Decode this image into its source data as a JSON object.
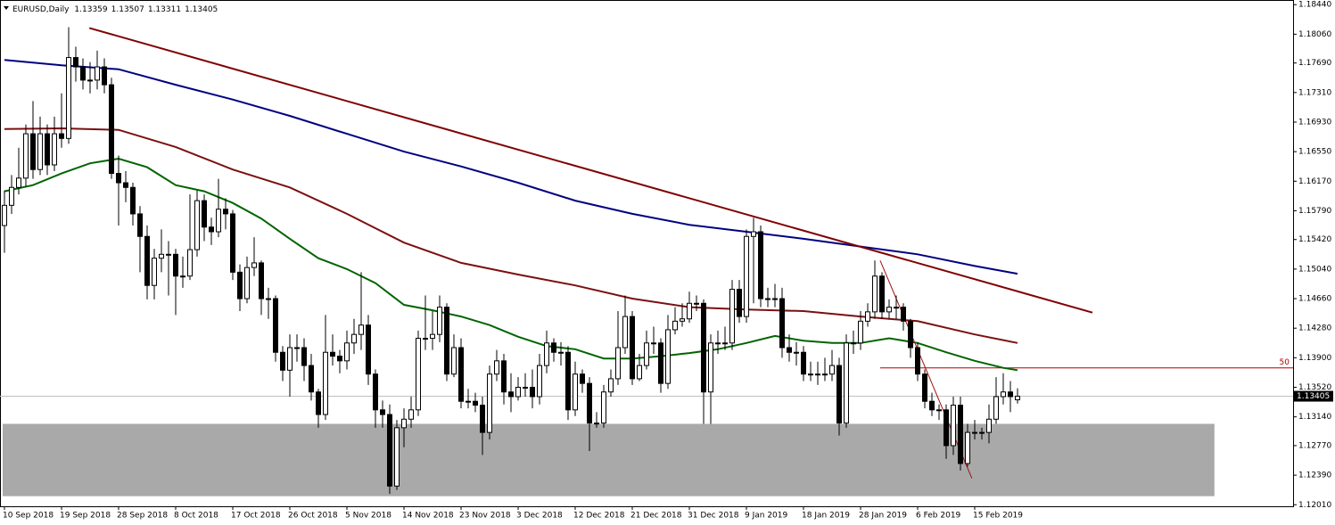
{
  "chart_data": {
    "type": "candlestick",
    "symbol": "EURUSD,Daily",
    "categories": [
      "10 Sep 2018",
      null,
      null,
      null,
      null,
      null,
      null,
      null,
      "19 Sep 2018",
      null,
      null,
      null,
      null,
      null,
      null,
      null,
      "28 Sep 2018",
      null,
      null,
      null,
      null,
      null,
      null,
      null,
      "8 Oct 2018",
      null,
      null,
      null,
      null,
      null,
      null,
      null,
      "17 Oct 2018",
      null,
      null,
      null,
      null,
      null,
      null,
      null,
      "26 Oct 2018",
      null,
      null,
      null,
      null,
      null,
      null,
      null,
      "5 Nov 2018",
      null,
      null,
      null,
      null,
      null,
      null,
      null,
      "14 Nov 2018",
      null,
      null,
      null,
      null,
      null,
      null,
      null,
      "23 Nov 2018",
      null,
      null,
      null,
      null,
      null,
      null,
      null,
      "3 Dec 2018",
      null,
      null,
      null,
      null,
      null,
      null,
      null,
      "12 Dec 2018",
      null,
      null,
      null,
      null,
      null,
      null,
      null,
      "21 Dec 2018",
      null,
      null,
      null,
      null,
      null,
      null,
      null,
      "31 Dec 2018",
      null,
      null,
      null,
      null,
      null,
      null,
      null,
      "9 Jan 2019",
      null,
      null,
      null,
      null,
      null,
      null,
      null,
      "18 Jan 2019",
      null,
      null,
      null,
      null,
      null,
      null,
      null,
      "28 Jan 2019",
      null,
      null,
      null,
      null,
      null,
      null,
      null,
      "6 Feb 2019",
      null,
      null,
      null,
      null,
      null,
      null,
      null,
      "15 Feb 2019",
      null,
      null,
      null,
      null,
      null,
      null
    ],
    "candles": {
      "up_color": "#ffffff",
      "down_color": "#000000",
      "open": [
        1.156,
        1.1586,
        1.1609,
        1.1621,
        1.1678,
        1.1632,
        1.1678,
        1.1638,
        1.1678,
        1.1672,
        1.1776,
        1.1764,
        1.1747,
        1.1747,
        1.1764,
        1.1741,
        1.1627,
        1.1615,
        1.1609,
        1.1575,
        1.1546,
        1.1483,
        1.1518,
        1.1523,
        1.1523,
        1.1495,
        1.1495,
        1.1529,
        1.1592,
        1.1558,
        1.1552,
        1.1581,
        1.1575,
        1.15,
        1.1466,
        1.1506,
        1.1512,
        1.1466,
        1.1466,
        1.1397,
        1.1374,
        1.1403,
        1.1403,
        1.138,
        1.1346,
        1.1317,
        1.1397,
        1.1392,
        1.1386,
        1.1409,
        1.142,
        1.1432,
        1.1369,
        1.1323,
        1.1317,
        1.1225,
        1.13,
        1.1311,
        1.1323,
        1.1415,
        1.1415,
        1.142,
        1.1455,
        1.1369,
        1.1403,
        1.1334,
        1.1334,
        1.1329,
        1.1294,
        1.1369,
        1.1386,
        1.1346,
        1.134,
        1.1352,
        1.1352,
        1.134,
        1.138,
        1.1409,
        1.1397,
        1.1397,
        1.1323,
        1.1369,
        1.1357,
        1.1306,
        1.1306,
        1.1346,
        1.1363,
        1.1403,
        1.1443,
        1.1363,
        1.138,
        1.1409,
        1.1409,
        1.1357,
        1.1426,
        1.1437,
        1.144,
        1.146,
        1.146,
        1.1346,
        1.1409,
        1.1409,
        1.1409,
        1.1478,
        1.1443,
        1.1546,
        1.1552,
        1.1466,
        1.1466,
        1.1466,
        1.1403,
        1.1397,
        1.1397,
        1.1369,
        1.1369,
        1.1369,
        1.1369,
        1.138,
        1.1306,
        1.1409,
        1.1409,
        1.1437,
        1.1449,
        1.1495,
        1.1449,
        1.1455,
        1.1455,
        1.1437,
        1.1403,
        1.1369,
        1.1334,
        1.1323,
        1.1323,
        1.1277,
        1.1329,
        1.1254,
        1.1294,
        1.1294,
        1.1294,
        1.1311,
        1.134,
        1.1346,
        1.13359
      ],
      "high": [
        1.1605,
        1.1625,
        1.166,
        1.169,
        1.172,
        1.17,
        1.169,
        1.17,
        1.173,
        1.1815,
        1.179,
        1.1775,
        1.177,
        1.1785,
        1.1775,
        1.175,
        1.165,
        1.163,
        1.1615,
        1.1585,
        1.156,
        1.153,
        1.1555,
        1.154,
        1.153,
        1.152,
        1.16,
        1.1605,
        1.16,
        1.157,
        1.162,
        1.1595,
        1.158,
        1.151,
        1.152,
        1.1545,
        1.1515,
        1.148,
        1.147,
        1.1405,
        1.142,
        1.142,
        1.1415,
        1.1395,
        1.135,
        1.1445,
        1.142,
        1.14,
        1.1425,
        1.144,
        1.15,
        1.1445,
        1.1375,
        1.1335,
        1.133,
        1.131,
        1.1325,
        1.134,
        1.1425,
        1.147,
        1.145,
        1.147,
        1.146,
        1.142,
        1.1415,
        1.135,
        1.1345,
        1.134,
        1.138,
        1.14,
        1.1395,
        1.137,
        1.1365,
        1.137,
        1.1375,
        1.1395,
        1.1425,
        1.1415,
        1.141,
        1.1405,
        1.1385,
        1.1375,
        1.1365,
        1.132,
        1.1355,
        1.1375,
        1.145,
        1.147,
        1.145,
        1.1395,
        1.1425,
        1.143,
        1.1415,
        1.1445,
        1.1455,
        1.146,
        1.1475,
        1.147,
        1.1465,
        1.142,
        1.1425,
        1.143,
        1.149,
        1.149,
        1.1555,
        1.157,
        1.156,
        1.148,
        1.1485,
        1.148,
        1.142,
        1.141,
        1.1405,
        1.1385,
        1.1385,
        1.139,
        1.14,
        1.139,
        1.142,
        1.1425,
        1.145,
        1.146,
        1.1515,
        1.15,
        1.1465,
        1.147,
        1.146,
        1.144,
        1.141,
        1.1375,
        1.1345,
        1.133,
        1.133,
        1.134,
        1.134,
        1.1305,
        1.131,
        1.13,
        1.133,
        1.1365,
        1.137,
        1.136,
        1.13507
      ],
      "low": [
        1.1525,
        1.1575,
        1.16,
        1.161,
        1.162,
        1.1625,
        1.1625,
        1.163,
        1.166,
        1.1665,
        1.1745,
        1.1735,
        1.173,
        1.1735,
        1.173,
        1.162,
        1.156,
        1.159,
        1.156,
        1.15,
        1.1465,
        1.1465,
        1.15,
        1.147,
        1.1445,
        1.148,
        1.149,
        1.152,
        1.154,
        1.1535,
        1.1545,
        1.1555,
        1.149,
        1.145,
        1.146,
        1.1495,
        1.1445,
        1.144,
        1.1385,
        1.136,
        1.134,
        1.1385,
        1.136,
        1.1335,
        1.13,
        1.131,
        1.138,
        1.137,
        1.1375,
        1.1395,
        1.14,
        1.1355,
        1.13,
        1.13,
        1.1215,
        1.122,
        1.1275,
        1.13,
        1.1315,
        1.14,
        1.14,
        1.141,
        1.136,
        1.1365,
        1.1325,
        1.1325,
        1.132,
        1.1265,
        1.1285,
        1.136,
        1.133,
        1.132,
        1.1335,
        1.134,
        1.1325,
        1.133,
        1.137,
        1.1385,
        1.138,
        1.131,
        1.1315,
        1.1345,
        1.127,
        1.13,
        1.13,
        1.134,
        1.1355,
        1.1395,
        1.1355,
        1.136,
        1.1375,
        1.1395,
        1.1345,
        1.135,
        1.142,
        1.143,
        1.1435,
        1.145,
        1.1305,
        1.1305,
        1.1395,
        1.14,
        1.14,
        1.1435,
        1.1435,
        1.146,
        1.1455,
        1.1455,
        1.1455,
        1.139,
        1.1385,
        1.138,
        1.136,
        1.136,
        1.1355,
        1.136,
        1.136,
        1.129,
        1.13,
        1.1395,
        1.14,
        1.143,
        1.144,
        1.144,
        1.144,
        1.144,
        1.1425,
        1.139,
        1.136,
        1.1325,
        1.1315,
        1.131,
        1.126,
        1.1265,
        1.1245,
        1.125,
        1.1285,
        1.1285,
        1.128,
        1.1305,
        1.133,
        1.132,
        1.13311
      ],
      "close": [
        1.1586,
        1.1609,
        1.1621,
        1.1678,
        1.1632,
        1.1678,
        1.1638,
        1.1678,
        1.1672,
        1.1776,
        1.1764,
        1.1747,
        1.1747,
        1.1764,
        1.1741,
        1.1627,
        1.1615,
        1.1609,
        1.1575,
        1.1546,
        1.1483,
        1.1518,
        1.1523,
        1.1523,
        1.1495,
        1.1495,
        1.1529,
        1.1592,
        1.1558,
        1.1552,
        1.1581,
        1.1575,
        1.15,
        1.1466,
        1.1506,
        1.1512,
        1.1466,
        1.1466,
        1.1397,
        1.1374,
        1.1403,
        1.1403,
        1.138,
        1.1346,
        1.1317,
        1.1397,
        1.1392,
        1.1386,
        1.1409,
        1.142,
        1.1432,
        1.1369,
        1.1323,
        1.1317,
        1.1225,
        1.13,
        1.1311,
        1.1323,
        1.1415,
        1.1415,
        1.142,
        1.1455,
        1.1369,
        1.1403,
        1.1334,
        1.1334,
        1.1329,
        1.1294,
        1.1369,
        1.1386,
        1.1346,
        1.134,
        1.1352,
        1.1352,
        1.134,
        1.138,
        1.1409,
        1.1397,
        1.1397,
        1.1323,
        1.1369,
        1.1357,
        1.1306,
        1.1306,
        1.1346,
        1.1363,
        1.1403,
        1.1443,
        1.1363,
        1.138,
        1.1409,
        1.1409,
        1.1357,
        1.1426,
        1.1437,
        1.144,
        1.146,
        1.146,
        1.1346,
        1.1409,
        1.1409,
        1.1409,
        1.1478,
        1.1443,
        1.1546,
        1.1552,
        1.1466,
        1.1466,
        1.1466,
        1.1403,
        1.1397,
        1.1397,
        1.1369,
        1.1369,
        1.1369,
        1.1369,
        1.138,
        1.1306,
        1.1409,
        1.1409,
        1.1437,
        1.1449,
        1.1495,
        1.1449,
        1.1455,
        1.1455,
        1.1437,
        1.1403,
        1.1369,
        1.1334,
        1.1323,
        1.1323,
        1.1277,
        1.1329,
        1.1254,
        1.1294,
        1.1294,
        1.1294,
        1.1311,
        1.134,
        1.1346,
        1.134,
        1.13405
      ]
    },
    "ylim": [
      1.1199,
      1.185
    ],
    "yticks": [
      {
        "value": 1.1844,
        "label": "1.18440"
      },
      {
        "value": 1.1806,
        "label": "1.18060"
      },
      {
        "value": 1.1769,
        "label": "1.17690"
      },
      {
        "value": 1.1731,
        "label": "1.17310"
      },
      {
        "value": 1.1693,
        "label": "1.16930"
      },
      {
        "value": 1.1655,
        "label": "1.16550"
      },
      {
        "value": 1.1617,
        "label": "1.16170"
      },
      {
        "value": 1.1579,
        "label": "1.15790"
      },
      {
        "value": 1.1542,
        "label": "1.15420"
      },
      {
        "value": 1.1504,
        "label": "1.15040"
      },
      {
        "value": 1.1466,
        "label": "1.14660"
      },
      {
        "value": 1.1428,
        "label": "1.14280"
      },
      {
        "value": 1.139,
        "label": "1.13900"
      },
      {
        "value": 1.1352,
        "label": "1.13520"
      },
      {
        "value": 1.1314,
        "label": "1.13140"
      },
      {
        "value": 1.1277,
        "label": "1.12770"
      },
      {
        "value": 1.1239,
        "label": "1.12390"
      },
      {
        "value": 1.1201,
        "label": "1.12010"
      }
    ],
    "zone": {
      "color": "#a9a9a9",
      "x": [
        -0.25,
        169.6
      ],
      "values": [
        1.1305,
        1.1212
      ]
    },
    "moving_averages": [
      {
        "color": "#000080",
        "x": [
          0,
          8,
          16,
          24,
          32,
          40,
          48,
          56,
          64,
          72,
          80,
          88,
          96,
          104,
          112,
          120,
          128,
          136,
          142
        ],
        "values": [
          1.1773,
          1.1766,
          1.1761,
          1.1741,
          1.1722,
          1.1701,
          1.1678,
          1.1655,
          1.1636,
          1.1615,
          1.1592,
          1.1575,
          1.1561,
          1.1552,
          1.1543,
          1.1533,
          1.1523,
          1.1508,
          1.1498
        ]
      },
      {
        "color": "#7b1010",
        "x": [
          0,
          8,
          16,
          24,
          32,
          40,
          48,
          56,
          64,
          72,
          80,
          88,
          96,
          104,
          112,
          120,
          128,
          136,
          142
        ],
        "values": [
          1.1684,
          1.1685,
          1.1683,
          1.1661,
          1.1632,
          1.1609,
          1.1575,
          1.1538,
          1.1512,
          1.1497,
          1.1483,
          1.1466,
          1.1455,
          1.1452,
          1.145,
          1.1443,
          1.1437,
          1.142,
          1.1409
        ]
      },
      {
        "color": "#006400",
        "x": [
          0,
          4,
          8,
          12,
          16,
          20,
          24,
          28,
          32,
          36,
          40,
          44,
          48,
          52,
          56,
          60,
          64,
          68,
          72,
          76,
          80,
          84,
          88,
          92,
          96,
          100,
          104,
          108,
          112,
          116,
          120,
          124,
          128,
          132,
          136,
          140,
          142
        ],
        "values": [
          1.1604,
          1.1612,
          1.1627,
          1.164,
          1.1646,
          1.1635,
          1.1612,
          1.1604,
          1.1589,
          1.1569,
          1.1543,
          1.1518,
          1.1504,
          1.1486,
          1.1458,
          1.1451,
          1.1443,
          1.1432,
          1.1417,
          1.1405,
          1.1401,
          1.1389,
          1.1389,
          1.1392,
          1.1396,
          1.1401,
          1.1409,
          1.1418,
          1.1412,
          1.1409,
          1.1409,
          1.1415,
          1.1409,
          1.1397,
          1.1386,
          1.1377,
          1.1374
        ]
      }
    ],
    "trendlines": [
      {
        "color": "#800000",
        "x": [
          11.9,
          152.5
        ],
        "values": [
          1.1814,
          1.1448
        ]
      },
      {
        "color": "#a01010",
        "x": [
          122.75,
          135.6
        ],
        "values": [
          1.1515,
          1.1235
        ]
      }
    ],
    "level": {
      "label": "50",
      "value": 1.1377,
      "x": 122.75,
      "color": "#b00000"
    }
  }
}
